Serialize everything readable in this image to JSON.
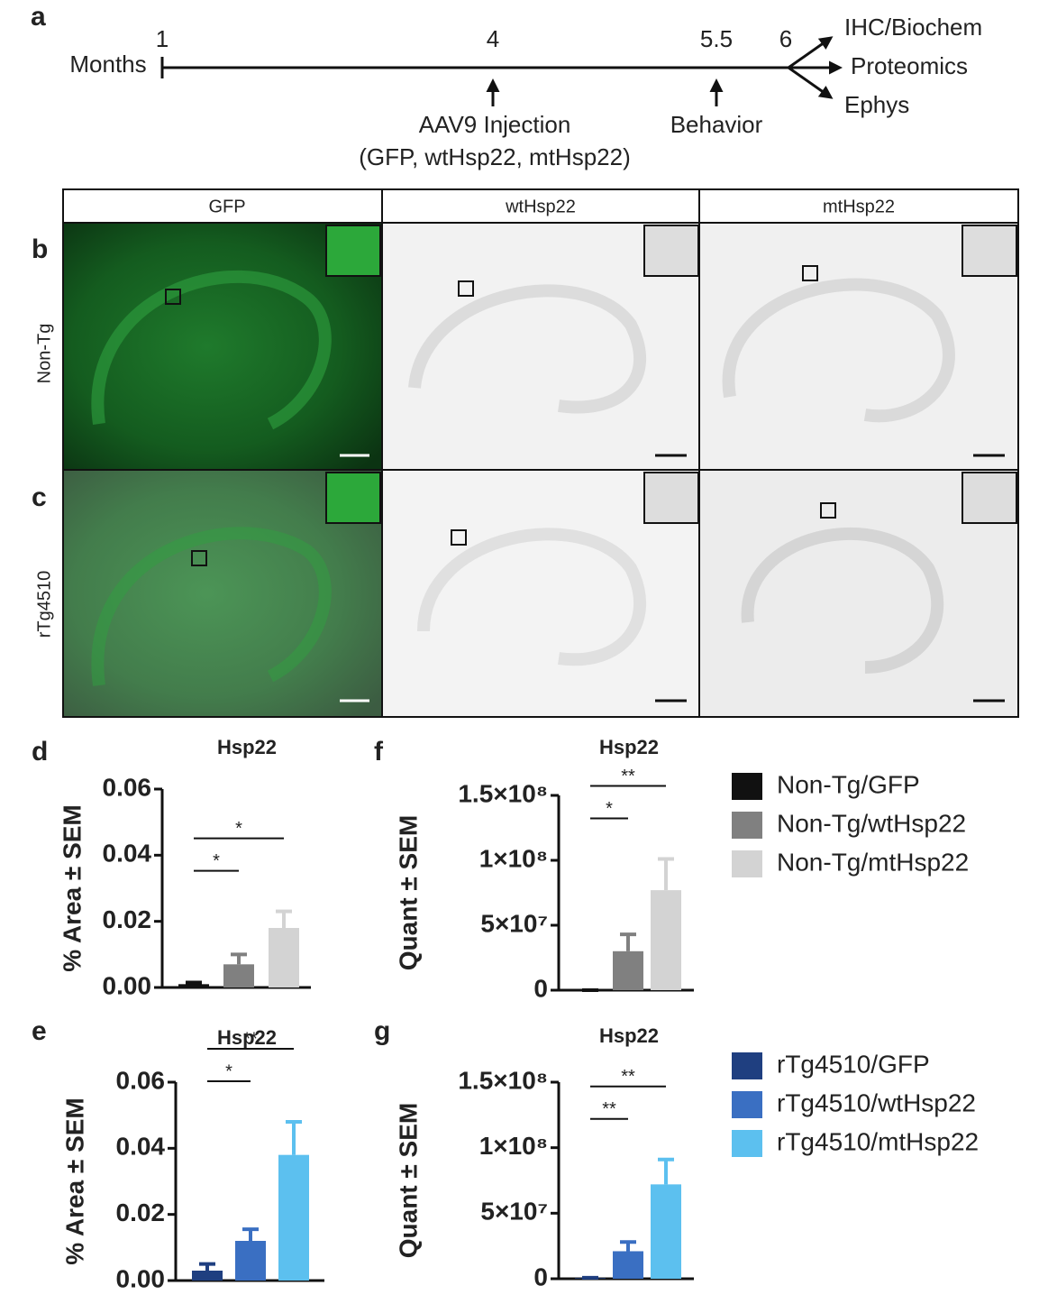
{
  "timeline": {
    "letter": "a",
    "unit": "Months",
    "ticks": [
      "1",
      "4",
      "5.5",
      "6"
    ],
    "events": [
      {
        "label": "AAV9 Injection",
        "detail": "(GFP, wtHsp22, mtHsp22)"
      },
      {
        "label": "Behavior"
      }
    ],
    "outcomes": [
      "IHC/Biochem",
      "Proteomics",
      "Ephys"
    ]
  },
  "images": {
    "columns": [
      "GFP",
      "wtHsp22",
      "mtHsp22"
    ],
    "rows": [
      {
        "letter": "b",
        "label": "Non-Tg"
      },
      {
        "letter": "c",
        "label": "rTg4510"
      }
    ]
  },
  "chart_data": [
    {
      "type": "bar",
      "letter": "d",
      "title": "Hsp22",
      "ylabel": "% Area ± SEM",
      "ylim": [
        0,
        0.06
      ],
      "yticks": [
        {
          "value": 0,
          "label": "0.00"
        },
        {
          "value": 0.02,
          "label": "0.02"
        },
        {
          "value": 0.04,
          "label": "0.04"
        },
        {
          "value": 0.06,
          "label": "0.06"
        }
      ],
      "series": [
        {
          "color": "#111111",
          "values": [
            0.001
          ],
          "errors": [
            0.0005
          ]
        },
        {
          "color": "#808080",
          "values": [
            0.007
          ],
          "errors": [
            0.003
          ]
        },
        {
          "color": "#d3d3d3",
          "values": [
            0.018
          ],
          "errors": [
            0.005
          ]
        }
      ],
      "significance": [
        {
          "bars": [
            0,
            1
          ],
          "label": "*"
        },
        {
          "bars": [
            0,
            2
          ],
          "label": "*"
        }
      ]
    },
    {
      "type": "bar",
      "letter": "e",
      "title": "Hsp22",
      "ylabel": "% Area ± SEM",
      "ylim": [
        0,
        0.06
      ],
      "yticks": [
        {
          "value": 0,
          "label": "0.00"
        },
        {
          "value": 0.02,
          "label": "0.02"
        },
        {
          "value": 0.04,
          "label": "0.04"
        },
        {
          "value": 0.06,
          "label": "0.06"
        }
      ],
      "series": [
        {
          "color": "#1f3f80",
          "values": [
            0.003
          ],
          "errors": [
            0.002
          ]
        },
        {
          "color": "#3a6fc2",
          "values": [
            0.012
          ],
          "errors": [
            0.0035
          ]
        },
        {
          "color": "#5cc0ef",
          "values": [
            0.038
          ],
          "errors": [
            0.01
          ]
        }
      ],
      "significance": [
        {
          "bars": [
            0,
            1
          ],
          "label": "*"
        },
        {
          "bars": [
            0,
            2
          ],
          "label": "**"
        }
      ]
    },
    {
      "type": "bar",
      "letter": "f",
      "title": "Hsp22",
      "ylabel": "Quant ± SEM",
      "ylim": [
        0,
        150000000
      ],
      "yticks": [
        0,
        {
          "value": 50000000,
          "label": "5×10⁷"
        },
        {
          "value": 100000000,
          "label": "1×10⁸"
        },
        {
          "value": 150000000,
          "label": "1.5×10⁸"
        }
      ],
      "series": [
        {
          "name": "Non-Tg/GFP",
          "color": "#111111",
          "values": [
            0
          ],
          "errors": [
            0
          ]
        },
        {
          "name": "Non-Tg/wtHsp22",
          "color": "#808080",
          "values": [
            30000000
          ],
          "errors": [
            13000000
          ]
        },
        {
          "name": "Non-Tg/mtHsp22",
          "color": "#d3d3d3",
          "values": [
            77000000
          ],
          "errors": [
            24000000
          ]
        }
      ],
      "significance": [
        {
          "bars": [
            0,
            1
          ],
          "label": "*"
        },
        {
          "bars": [
            0,
            2
          ],
          "label": "**"
        }
      ]
    },
    {
      "type": "bar",
      "letter": "g",
      "title": "Hsp22",
      "ylabel": "Quant ± SEM",
      "ylim": [
        0,
        150000000
      ],
      "yticks": [
        0,
        {
          "value": 50000000,
          "label": "5×10⁷"
        },
        {
          "value": 100000000,
          "label": "1×10⁸"
        },
        {
          "value": 150000000,
          "label": "1.5×10⁸"
        }
      ],
      "series": [
        {
          "name": "rTg4510/GFP",
          "color": "#1f3f80",
          "values": [
            500000
          ],
          "errors": [
            300000
          ]
        },
        {
          "name": "rTg4510/wtHsp22",
          "color": "#3a6fc2",
          "values": [
            21000000
          ],
          "errors": [
            7000000
          ]
        },
        {
          "name": "rTg4510/mtHsp22",
          "color": "#5cc0ef",
          "values": [
            72000000
          ],
          "errors": [
            19000000
          ]
        }
      ],
      "significance": [
        {
          "bars": [
            0,
            1
          ],
          "label": "**"
        },
        {
          "bars": [
            0,
            2
          ],
          "label": "**"
        }
      ]
    }
  ]
}
